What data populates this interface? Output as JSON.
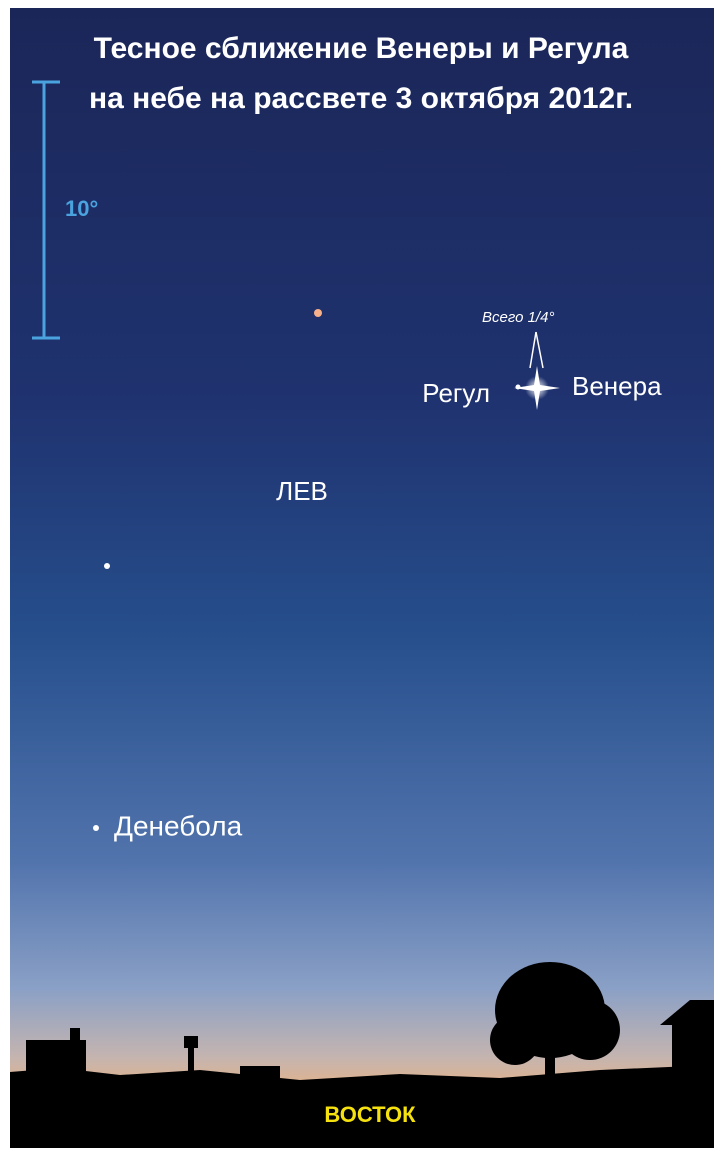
{
  "title": {
    "line1": "Тесное сближение Венеры и Регула",
    "line2": "на небе на рассвете 3 октября 2012г."
  },
  "scale": {
    "label": "10°"
  },
  "annotation": "Всего 1/4°",
  "labels": {
    "regulus": "Регул",
    "venus": "Венера",
    "constellation": "ЛЕВ",
    "denebola": "Денебола"
  },
  "horizon": "ВОСТОК"
}
